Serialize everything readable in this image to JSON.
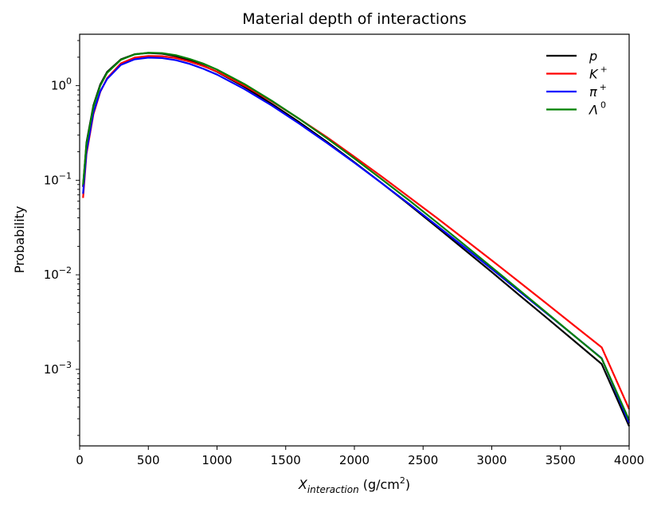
{
  "chart_data": {
    "type": "line",
    "title": "Material depth of interactions",
    "xlabel_main": "X",
    "xlabel_sub": "interaction",
    "xlabel_unit": "(g/cm",
    "xlabel_unit_sup": "2",
    "xlabel_unit_end": ")",
    "ylabel": "Probability",
    "xlim": [
      0,
      4000
    ],
    "ylim": [
      0.000155,
      3.5
    ],
    "yscale": "log",
    "grid": false,
    "legend_position": "top-right",
    "x_ticks": [
      "0",
      "500",
      "1000",
      "1500",
      "2000",
      "2500",
      "3000",
      "3500",
      "4000"
    ],
    "y_ticks": [
      {
        "base": "10",
        "exp": "0",
        "value": 1
      },
      {
        "base": "10",
        "exp": "−1",
        "value": 0.1
      },
      {
        "base": "10",
        "exp": "−2",
        "value": 0.01
      },
      {
        "base": "10",
        "exp": "−3",
        "value": 0.001
      }
    ],
    "x": [
      25,
      50,
      100,
      150,
      200,
      300,
      400,
      500,
      600,
      700,
      800,
      900,
      1000,
      1200,
      1400,
      1600,
      1800,
      2000,
      2200,
      2400,
      2600,
      2800,
      3000,
      3200,
      3400,
      3600,
      3800,
      4000
    ],
    "series": [
      {
        "name": "p",
        "label_base": "p",
        "label_sup": "",
        "color": "#000000",
        "values": [
          0.085,
          0.25,
          0.62,
          1.03,
          1.4,
          1.9,
          2.15,
          2.22,
          2.18,
          2.05,
          1.85,
          1.63,
          1.4,
          0.97,
          0.64,
          0.41,
          0.255,
          0.155,
          0.093,
          0.055,
          0.032,
          0.0185,
          0.0107,
          0.0061,
          0.0035,
          0.002,
          0.00114,
          0.00025
        ]
      },
      {
        "name": "K+",
        "label_base": "K",
        "label_sup": "+",
        "color": "#ff0000",
        "values": [
          0.065,
          0.19,
          0.5,
          0.86,
          1.2,
          1.72,
          1.98,
          2.06,
          2.05,
          1.96,
          1.8,
          1.61,
          1.41,
          1.0,
          0.68,
          0.445,
          0.285,
          0.177,
          0.109,
          0.066,
          0.04,
          0.0239,
          0.0142,
          0.0084,
          0.00495,
          0.0029,
          0.00171,
          0.00038
        ]
      },
      {
        "name": "pi+",
        "label_base": "π",
        "label_sup": "+",
        "color": "#0000ff",
        "values": [
          0.072,
          0.2,
          0.52,
          0.87,
          1.18,
          1.66,
          1.9,
          1.98,
          1.96,
          1.86,
          1.7,
          1.51,
          1.31,
          0.92,
          0.615,
          0.395,
          0.248,
          0.153,
          0.093,
          0.056,
          0.0332,
          0.0196,
          0.0115,
          0.0067,
          0.0039,
          0.00227,
          0.00131,
          0.00027
        ]
      },
      {
        "name": "Lambda0",
        "label_base": "Λ",
        "label_sup": "0",
        "color": "#008000",
        "values": [
          0.09,
          0.24,
          0.6,
          1.0,
          1.37,
          1.88,
          2.14,
          2.23,
          2.21,
          2.1,
          1.92,
          1.71,
          1.48,
          1.04,
          0.69,
          0.445,
          0.278,
          0.17,
          0.102,
          0.061,
          0.0358,
          0.0208,
          0.012,
          0.0069,
          0.00396,
          0.00227,
          0.0013,
          0.00029
        ]
      }
    ]
  }
}
